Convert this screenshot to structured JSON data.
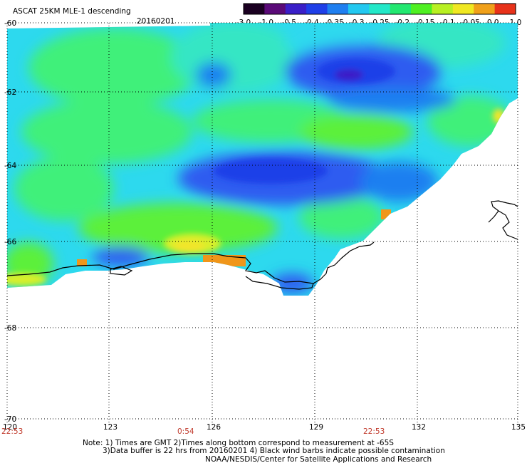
{
  "header": {
    "title": "ASCAT 25KM MLE-1 descending",
    "date": "20160201"
  },
  "colorbar": {
    "ticks": [
      "-3.0",
      "-1.0",
      "-0.5",
      "-0.4",
      "-0.35",
      "-0.3",
      "-0.25",
      "-0.2",
      "-0.15",
      "-0.1",
      "-0.05",
      "0.0",
      "1.0"
    ],
    "colors": [
      "#1a0021",
      "#5a0a78",
      "#3a1fc8",
      "#1f3fe8",
      "#1f7ff0",
      "#22c8f0",
      "#22e8c8",
      "#22e870",
      "#4ff022",
      "#b8f022",
      "#f0e822",
      "#f0a01a",
      "#e8321a"
    ]
  },
  "map": {
    "lat_labels": [
      "-60",
      "-62",
      "-64",
      "-66",
      "-68",
      "-70"
    ],
    "lon_labels": [
      "120",
      "123",
      "126",
      "129",
      "132",
      "135"
    ],
    "time_labels": [
      "22:53",
      "0:54",
      "22:53"
    ]
  },
  "footer": {
    "line1": "Note: 1) Times are GMT 2)Times along bottom correspond to measurement at -65S",
    "line2": "3)Data buffer is 22 hrs from 20160201 4) Black wind barbs indicate possible contamination",
    "line3": "NOAA/NESDIS/Center for Satellite Applications and Research"
  }
}
